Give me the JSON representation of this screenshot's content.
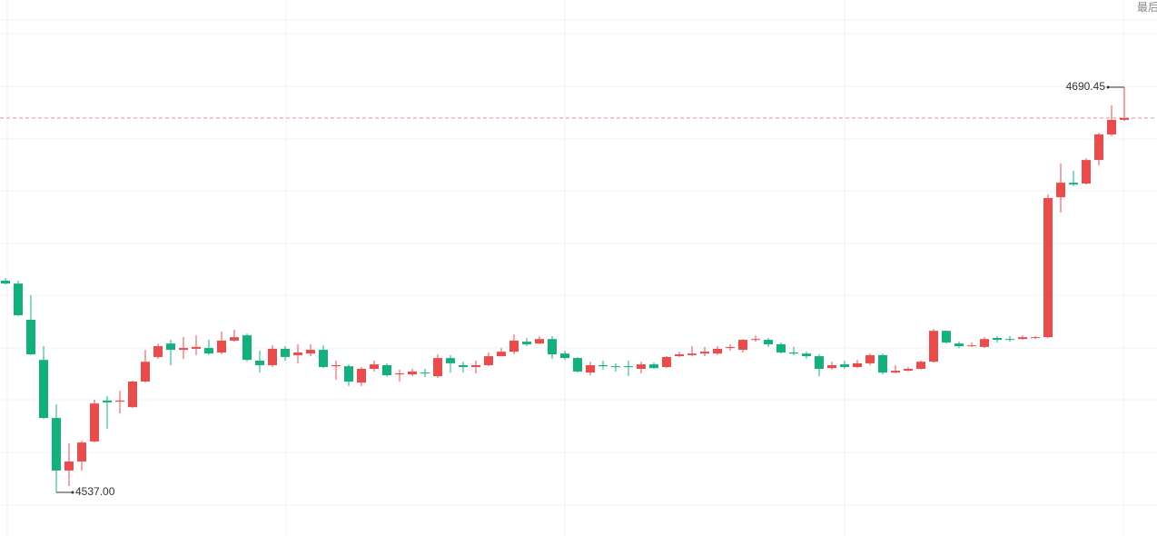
{
  "chart_data": {
    "type": "candlestick",
    "corner_label": "最后",
    "ylim": [
      4520.5,
      4723.5
    ],
    "up_color": "#ea4c4c",
    "down_color": "#13b07f",
    "last_price_color": "#e8909a",
    "last_price": 4678.8,
    "annotations": [
      {
        "value": 4690.45,
        "label": "4690.45"
      },
      {
        "value": 4537,
        "label": "4537.00"
      }
    ],
    "ohlc": [
      [
        4617.2,
        4618.2,
        4615.8,
        4616.1
      ],
      [
        4616.1,
        4617.2,
        4603.8,
        4604.1
      ],
      [
        4602.4,
        4611.7,
        4589.0,
        4589.3
      ],
      [
        4587.2,
        4592.4,
        4564.9,
        4565.2
      ],
      [
        4565.2,
        4570.4,
        4537,
        4545.3
      ],
      [
        4545.3,
        4555.6,
        4539.4,
        4548.7
      ],
      [
        4548.7,
        4556.6,
        4545.3,
        4555.9
      ],
      [
        4556.3,
        4572.1,
        4555.9,
        4570.7
      ],
      [
        4571.8,
        4573.5,
        4561.1,
        4571.1
      ],
      [
        4571.4,
        4575.5,
        4566.9,
        4571.8
      ],
      [
        4569.3,
        4579.3,
        4569.0,
        4579.0
      ],
      [
        4579.0,
        4591.0,
        4578.6,
        4586.5
      ],
      [
        4588.3,
        4593.4,
        4587.6,
        4592.4
      ],
      [
        4593.4,
        4594.8,
        4585.2,
        4591.0
      ],
      [
        4591.0,
        4595.8,
        4587.6,
        4591.7
      ],
      [
        4591.4,
        4596.5,
        4589.0,
        4592.1
      ],
      [
        4591.7,
        4594.8,
        4589.0,
        4589.6
      ],
      [
        4590.0,
        4597.9,
        4589.3,
        4594.5
      ],
      [
        4594.5,
        4598.6,
        4594.1,
        4595.8
      ],
      [
        4596.5,
        4597.2,
        4586.5,
        4587.2
      ],
      [
        4586.9,
        4590.7,
        4582.4,
        4585.2
      ],
      [
        4585.2,
        4592.7,
        4584.5,
        4591.4
      ],
      [
        4591.4,
        4592.4,
        4586.9,
        4588.3
      ],
      [
        4589.0,
        4593.1,
        4585.9,
        4590.0
      ],
      [
        4589.6,
        4593.1,
        4588.6,
        4591.0
      ],
      [
        4591.0,
        4592.7,
        4584.1,
        4584.5
      ],
      [
        4584.8,
        4586.9,
        4579.7,
        4585.2
      ],
      [
        4584.8,
        4585.5,
        4577.3,
        4579.0
      ],
      [
        4578.6,
        4584.5,
        4577.3,
        4583.8
      ],
      [
        4583.8,
        4586.9,
        4582.8,
        4585.5
      ],
      [
        4585.2,
        4585.9,
        4580.7,
        4581.4
      ],
      [
        4581.7,
        4583.5,
        4579.0,
        4582.1
      ],
      [
        4581.7,
        4583.8,
        4581.0,
        4582.8
      ],
      [
        4582.4,
        4583.8,
        4580.7,
        4582.1
      ],
      [
        4581.0,
        4589.3,
        4580.4,
        4587.9
      ],
      [
        4587.9,
        4589.0,
        4582.4,
        4585.9
      ],
      [
        4585.2,
        4586.5,
        4582.4,
        4584.5
      ],
      [
        4584.5,
        4586.9,
        4582.1,
        4585.2
      ],
      [
        4585.2,
        4590.0,
        4584.8,
        4588.6
      ],
      [
        4588.6,
        4591.7,
        4588.6,
        4590.3
      ],
      [
        4590.3,
        4596.9,
        4589.3,
        4594.5
      ],
      [
        4594.1,
        4595.5,
        4592.4,
        4593.1
      ],
      [
        4593.4,
        4596.2,
        4593.1,
        4595.1
      ],
      [
        4595.1,
        4596.2,
        4587.6,
        4589.3
      ],
      [
        4589.6,
        4590.7,
        4587.2,
        4587.9
      ],
      [
        4587.9,
        4588.3,
        4582.4,
        4582.8
      ],
      [
        4582.4,
        4586.5,
        4581.4,
        4585.2
      ],
      [
        4585.2,
        4586.9,
        4583.5,
        4584.8
      ],
      [
        4584.8,
        4585.9,
        4582.8,
        4584.5
      ],
      [
        4584.8,
        4586.9,
        4581.0,
        4584.5
      ],
      [
        4583.8,
        4586.5,
        4582.1,
        4585.5
      ],
      [
        4585.5,
        4586.2,
        4583.8,
        4584.1
      ],
      [
        4584.5,
        4588.6,
        4584.1,
        4588.3
      ],
      [
        4588.6,
        4590.3,
        4588.3,
        4589.3
      ],
      [
        4589.0,
        4592.4,
        4588.6,
        4589.6
      ],
      [
        4589.6,
        4592.1,
        4588.6,
        4590.3
      ],
      [
        4589.6,
        4592.4,
        4589.0,
        4591.4
      ],
      [
        4591.7,
        4593.1,
        4590.7,
        4592.1
      ],
      [
        4591.0,
        4595.1,
        4590.0,
        4594.8
      ],
      [
        4594.8,
        4596.5,
        4594.1,
        4595.1
      ],
      [
        4594.8,
        4595.5,
        4592.1,
        4593.1
      ],
      [
        4593.1,
        4593.8,
        4589.6,
        4590.0
      ],
      [
        4590.0,
        4592.1,
        4589.0,
        4589.6
      ],
      [
        4589.6,
        4590.3,
        4587.6,
        4588.6
      ],
      [
        4588.6,
        4589.3,
        4581.0,
        4583.8
      ],
      [
        4584.1,
        4586.5,
        4583.5,
        4585.2
      ],
      [
        4585.5,
        4586.9,
        4583.8,
        4584.5
      ],
      [
        4584.5,
        4587.2,
        4584.1,
        4585.9
      ],
      [
        4585.9,
        4589.6,
        4585.2,
        4589.0
      ],
      [
        4589.0,
        4589.6,
        4581.7,
        4582.4
      ],
      [
        4582.4,
        4585.2,
        4582.1,
        4583.1
      ],
      [
        4583.1,
        4584.5,
        4582.8,
        4583.8
      ],
      [
        4583.8,
        4586.9,
        4583.5,
        4586.5
      ],
      [
        4586.5,
        4598.9,
        4586.2,
        4598.2
      ],
      [
        4598.2,
        4598.2,
        4593.4,
        4593.8
      ],
      [
        4593.4,
        4594.1,
        4591.7,
        4592.4
      ],
      [
        4592.4,
        4593.8,
        4592.1,
        4592.7
      ],
      [
        4592.1,
        4595.8,
        4591.7,
        4595.1
      ],
      [
        4595.5,
        4596.2,
        4593.8,
        4594.8
      ],
      [
        4595.1,
        4596.2,
        4594.1,
        4594.8
      ],
      [
        4595.1,
        4596.5,
        4594.8,
        4595.8
      ],
      [
        4595.5,
        4596.2,
        4595.1,
        4595.8
      ],
      [
        4595.8,
        4649.9,
        4595.5,
        4648.5
      ],
      [
        4648.8,
        4661.6,
        4643.0,
        4654.3
      ],
      [
        4654.3,
        4658.8,
        4653.0,
        4653.6
      ],
      [
        4654.0,
        4663.6,
        4653.6,
        4662.9
      ],
      [
        4662.9,
        4673.3,
        4660.9,
        4672.6
      ],
      [
        4672.6,
        4683.6,
        4671.9,
        4678.1
      ],
      [
        4678.1,
        4690.45,
        4677.7,
        4678.8
      ]
    ]
  }
}
